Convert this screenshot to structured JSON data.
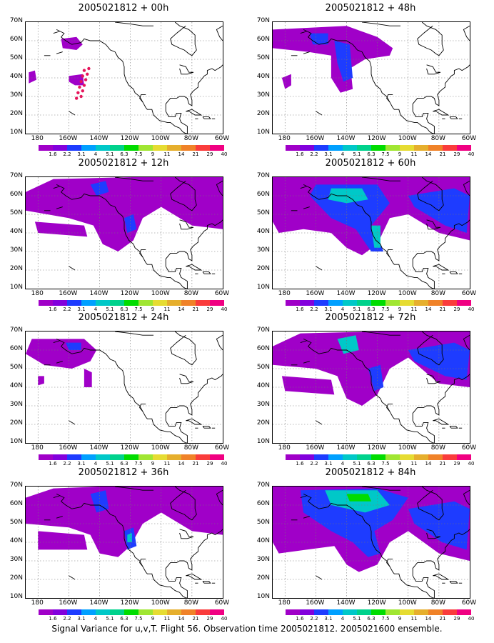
{
  "footer": "Signal Variance for u,v,T. Flight 56. Observation time 2005021812. 2005021600 ensemble.",
  "y_labels": [
    "70N",
    "60N",
    "50N",
    "40N",
    "30N",
    "20N",
    "10N"
  ],
  "x_labels": [
    "180",
    "160W",
    "140W",
    "120W",
    "100W",
    "80W",
    "60W"
  ],
  "colorbar_labels": [
    "1.6",
    "2.2",
    "3.1",
    "4",
    "5.1",
    "6.3",
    "7.5",
    "9",
    "11",
    "14",
    "21",
    "29",
    "40"
  ],
  "colorbar_colors": [
    "#a000c8",
    "#8200dc",
    "#1e3cff",
    "#00a0ff",
    "#00c8c8",
    "#00d28c",
    "#00dc00",
    "#a0e632",
    "#e6dc32",
    "#e6af2d",
    "#f08228",
    "#fa3c3c",
    "#f00082"
  ],
  "panels": [
    {
      "title": "2005021812 + 00h",
      "level": 0
    },
    {
      "title": "2005021812 + 48h",
      "level": 4
    },
    {
      "title": "2005021812 + 12h",
      "level": 1
    },
    {
      "title": "2005021812 + 60h",
      "level": 5
    },
    {
      "title": "2005021812 + 24h",
      "level": 2
    },
    {
      "title": "2005021812 + 72h",
      "level": 6
    },
    {
      "title": "2005021812 + 36h",
      "level": 3
    },
    {
      "title": "2005021812 + 84h",
      "level": 7
    }
  ]
}
